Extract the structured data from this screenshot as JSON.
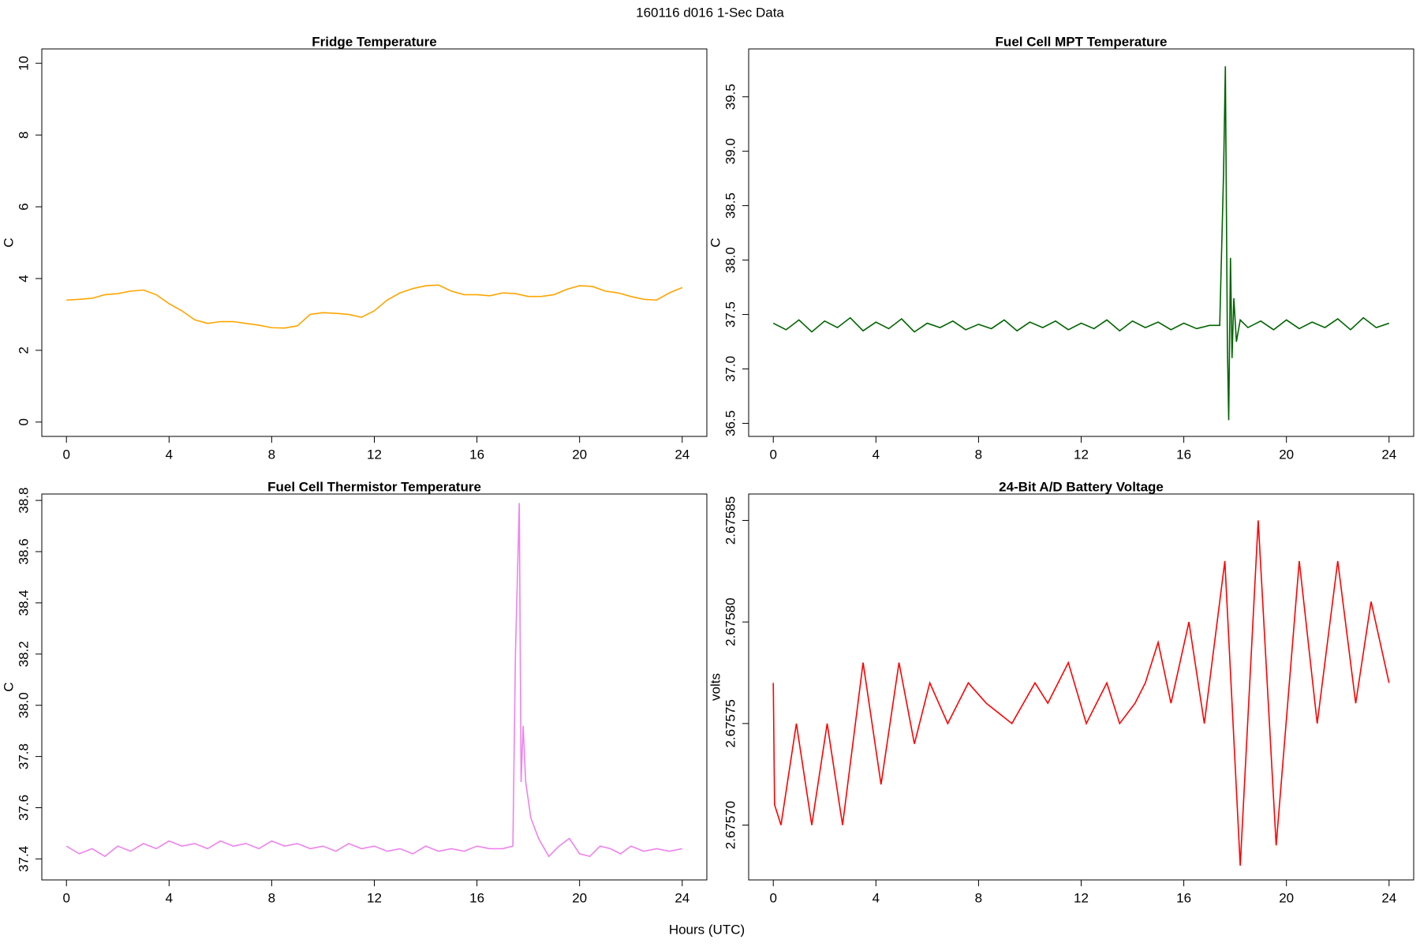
{
  "title": "160116   d016   1-Sec Data",
  "xlabel": "Hours (UTC)",
  "chart_data": [
    {
      "type": "line",
      "title": "Fridge Temperature",
      "ylabel": "C",
      "color": "#ffa500",
      "xlim": [
        -0.96,
        24.96
      ],
      "ylim": [
        -0.4,
        10.4
      ],
      "xticks": [
        0,
        4,
        8,
        12,
        16,
        20,
        24
      ],
      "yticks": [
        0,
        2,
        4,
        6,
        8,
        10
      ],
      "x": [
        0,
        0.5,
        1,
        1.5,
        2,
        2.5,
        3,
        3.5,
        4,
        4.5,
        5,
        5.5,
        6,
        6.5,
        7,
        7.5,
        8,
        8.5,
        9,
        9.5,
        10,
        10.5,
        11,
        11.5,
        12,
        12.5,
        13,
        13.5,
        14,
        14.5,
        15,
        15.5,
        16,
        16.5,
        17,
        17.5,
        18,
        18.5,
        19,
        19.5,
        20,
        20.5,
        21,
        21.5,
        22,
        22.5,
        23,
        23.5,
        24
      ],
      "values": [
        3.4,
        3.42,
        3.45,
        3.55,
        3.58,
        3.65,
        3.68,
        3.55,
        3.3,
        3.1,
        2.85,
        2.75,
        2.8,
        2.8,
        2.75,
        2.7,
        2.63,
        2.62,
        2.68,
        3.0,
        3.05,
        3.03,
        3.0,
        2.92,
        3.1,
        3.4,
        3.6,
        3.72,
        3.8,
        3.82,
        3.65,
        3.55,
        3.55,
        3.52,
        3.6,
        3.58,
        3.5,
        3.5,
        3.55,
        3.7,
        3.8,
        3.78,
        3.65,
        3.6,
        3.5,
        3.42,
        3.4,
        3.6,
        3.75
      ]
    },
    {
      "type": "line",
      "title": "Fuel Cell MPT Temperature",
      "ylabel": "C",
      "color": "#006400",
      "xlim": [
        -0.96,
        24.96
      ],
      "ylim": [
        36.38,
        39.94
      ],
      "xticks": [
        0,
        4,
        8,
        12,
        16,
        20,
        24
      ],
      "yticks": [
        36.5,
        {
          "value": 37,
          "label": "37.0"
        },
        37.5,
        {
          "value": 38,
          "label": "38.0"
        },
        38.5,
        {
          "value": 39,
          "label": "39.0"
        },
        39.5
      ],
      "x": [
        0,
        0.5,
        1,
        1.5,
        2,
        2.5,
        3,
        3.5,
        4,
        4.5,
        5,
        5.5,
        6,
        6.5,
        7,
        7.5,
        8,
        8.5,
        9,
        9.5,
        10,
        10.5,
        11,
        11.5,
        12,
        12.5,
        13,
        13.5,
        14,
        14.5,
        15,
        15.5,
        16,
        16.5,
        17,
        17.4,
        17.55,
        17.62,
        17.7,
        17.75,
        17.82,
        17.88,
        17.95,
        18.05,
        18.2,
        18.5,
        19,
        19.5,
        20,
        20.5,
        21,
        21.5,
        22,
        22.5,
        23,
        23.5,
        24
      ],
      "values": [
        37.42,
        37.36,
        37.45,
        37.34,
        37.44,
        37.38,
        37.47,
        37.35,
        37.43,
        37.37,
        37.46,
        37.34,
        37.42,
        37.38,
        37.44,
        37.36,
        37.41,
        37.37,
        37.45,
        37.35,
        37.43,
        37.38,
        37.44,
        37.36,
        37.42,
        37.37,
        37.45,
        37.35,
        37.44,
        37.38,
        37.43,
        37.36,
        37.42,
        37.37,
        37.4,
        37.4,
        38.8,
        39.78,
        37.2,
        36.53,
        38.02,
        37.1,
        37.65,
        37.25,
        37.45,
        37.38,
        37.44,
        37.36,
        37.45,
        37.37,
        37.43,
        37.38,
        37.46,
        37.36,
        37.47,
        37.38,
        37.42
      ]
    },
    {
      "type": "line",
      "title": "Fuel Cell Thermistor Temperature",
      "ylabel": "C",
      "color": "#ee82ee",
      "xlim": [
        -0.96,
        24.96
      ],
      "ylim": [
        37.318,
        38.825
      ],
      "xticks": [
        0,
        4,
        8,
        12,
        16,
        20,
        24
      ],
      "yticks": [
        37.4,
        37.6,
        37.8,
        {
          "value": 38,
          "label": "38.0"
        },
        38.2,
        38.4,
        38.6,
        38.8
      ],
      "x": [
        0,
        0.5,
        1,
        1.5,
        2,
        2.5,
        3,
        3.5,
        4,
        4.5,
        5,
        5.5,
        6,
        6.5,
        7,
        7.5,
        8,
        8.5,
        9,
        9.5,
        10,
        10.5,
        11,
        11.5,
        12,
        12.5,
        13,
        13.5,
        14,
        14.5,
        15,
        15.5,
        16,
        16.5,
        17,
        17.4,
        17.5,
        17.65,
        17.72,
        17.8,
        17.9,
        18.1,
        18.4,
        18.8,
        19.2,
        19.6,
        20,
        20.4,
        20.8,
        21.2,
        21.6,
        22,
        22.5,
        23,
        23.5,
        24
      ],
      "values": [
        37.45,
        37.42,
        37.44,
        37.41,
        37.45,
        37.43,
        37.46,
        37.44,
        37.47,
        37.45,
        37.46,
        37.44,
        37.47,
        37.45,
        37.46,
        37.44,
        37.47,
        37.45,
        37.46,
        37.44,
        37.45,
        37.43,
        37.46,
        37.44,
        37.45,
        37.43,
        37.44,
        37.42,
        37.45,
        37.43,
        37.44,
        37.43,
        37.45,
        37.44,
        37.44,
        37.45,
        38.2,
        38.79,
        37.7,
        37.92,
        37.7,
        37.56,
        37.48,
        37.41,
        37.45,
        37.48,
        37.42,
        37.41,
        37.45,
        37.44,
        37.42,
        37.45,
        37.43,
        37.44,
        37.43,
        37.44
      ]
    },
    {
      "type": "line",
      "title": "24-Bit A/D Battery Voltage",
      "ylabel": "volts",
      "color": "#ff0000",
      "xlim": [
        -0.96,
        24.96
      ],
      "ylim": [
        2.675673,
        2.675863
      ],
      "xticks": [
        0,
        4,
        8,
        12,
        16,
        20,
        24
      ],
      "yticks": [
        {
          "value": 2.6757,
          "label": "2.67570"
        },
        {
          "value": 2.67575,
          "label": "2.67575"
        },
        {
          "value": 2.6758,
          "label": "2.67580"
        },
        {
          "value": 2.67585,
          "label": "2.67585"
        }
      ],
      "x": [
        0,
        0.05,
        0.3,
        0.9,
        1.5,
        2.1,
        2.7,
        3.5,
        4.2,
        4.9,
        5.5,
        6.1,
        6.8,
        7.6,
        8.3,
        9.3,
        10.2,
        10.7,
        11.5,
        12.2,
        13,
        13.5,
        14.1,
        14.5,
        15,
        15.5,
        16.2,
        16.8,
        17.6,
        18.2,
        18.9,
        19.6,
        20.5,
        21.2,
        22,
        22.7,
        23.3,
        24
      ],
      "values": [
        2.67577,
        2.67571,
        2.6757,
        2.67575,
        2.6757,
        2.67575,
        2.6757,
        2.67578,
        2.67572,
        2.67578,
        2.67574,
        2.67577,
        2.67575,
        2.67577,
        2.67576,
        2.67575,
        2.67577,
        2.67576,
        2.67578,
        2.67575,
        2.67577,
        2.67575,
        2.67576,
        2.67577,
        2.67579,
        2.67576,
        2.6758,
        2.67575,
        2.67583,
        2.67568,
        2.67585,
        2.67569,
        2.67583,
        2.67575,
        2.67583,
        2.67576,
        2.67581,
        2.67577
      ]
    }
  ]
}
